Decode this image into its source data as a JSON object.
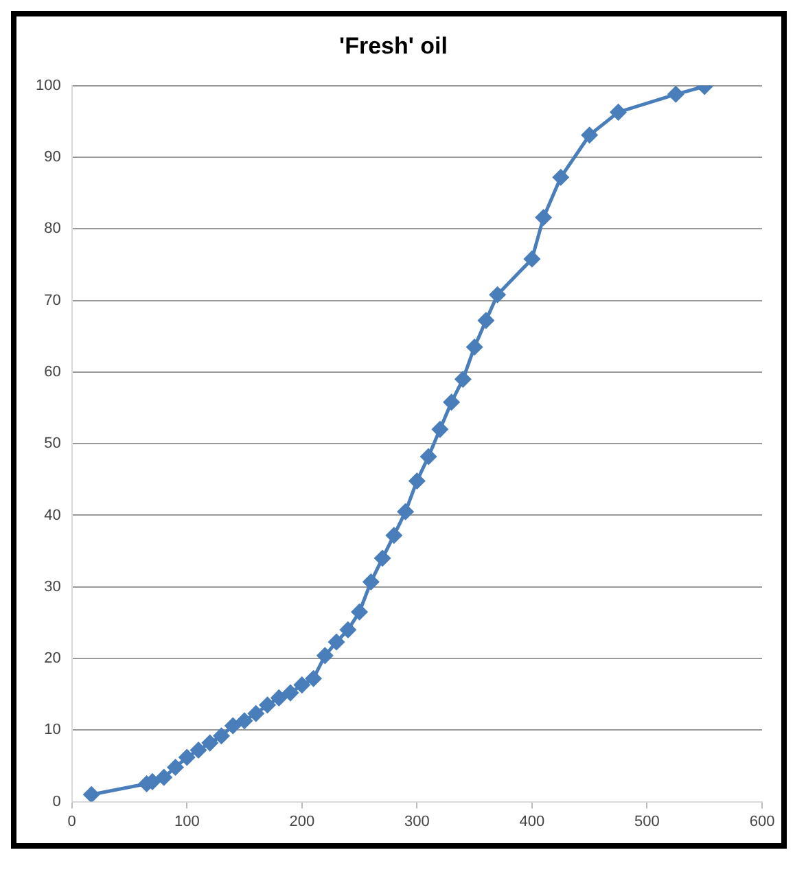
{
  "chart_data": {
    "type": "line",
    "title": "'Fresh' oil",
    "x": [
      17,
      65,
      70,
      80,
      90,
      100,
      110,
      120,
      130,
      140,
      150,
      160,
      170,
      180,
      190,
      200,
      210,
      220,
      230,
      240,
      250,
      260,
      270,
      280,
      290,
      300,
      310,
      320,
      330,
      340,
      350,
      360,
      370,
      400,
      410,
      425,
      450,
      475,
      525,
      550
    ],
    "series": [
      {
        "color": "#4a7ebb",
        "values": [
          1,
          2.5,
          2.8,
          3.4,
          4.8,
          6.2,
          7.2,
          8.2,
          9.2,
          10.6,
          11.3,
          12.3,
          13.5,
          14.5,
          15.2,
          16.3,
          17.2,
          20.4,
          22.3,
          24,
          26.5,
          30.7,
          34,
          37.2,
          40.5,
          44.8,
          48.2,
          52,
          55.8,
          59,
          63.5,
          67.2,
          70.8,
          75.8,
          81.6,
          87.2,
          93.1,
          96.3,
          98.8,
          99.9
        ]
      }
    ],
    "xlim": [
      0,
      600
    ],
    "xticks": [
      0,
      100,
      200,
      300,
      400,
      500,
      600
    ],
    "ylim": [
      0,
      100
    ],
    "yticks": [
      0,
      10,
      20,
      30,
      40,
      50,
      60,
      70,
      80,
      90,
      100
    ],
    "grid": "y",
    "legend": false,
    "marker": "diamond",
    "line_style": "solid"
  }
}
